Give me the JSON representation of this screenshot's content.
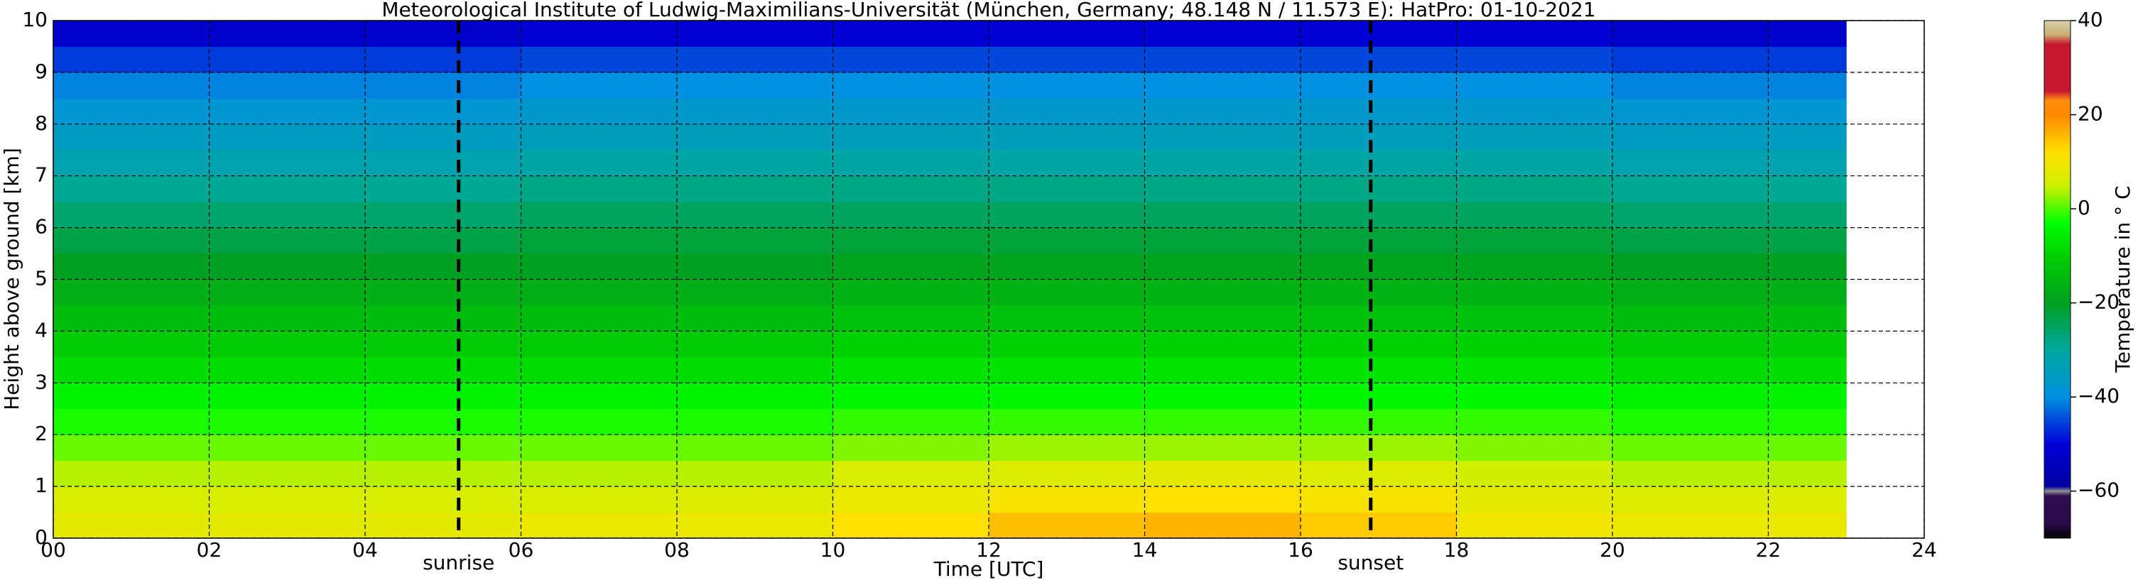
{
  "chart_data": {
    "type": "heatmap",
    "title": "Meteorological Institute of Ludwig-Maximilians-Universität (München, Germany; 48.148 N / 11.573 E):    HatPro: 01-10-2021",
    "x_label": "Time [UTC]",
    "y_label": "Height above ground [km]",
    "colorbar_label": "Temperature in $^\\circ$C",
    "colorbar_label_printed": "Temperature in ° C",
    "xlim": [
      0,
      24
    ],
    "ylim": [
      0,
      10
    ],
    "grid": true,
    "xticks": [
      {
        "value": 0,
        "label": "00"
      },
      {
        "value": 2,
        "label": "02"
      },
      {
        "value": 4,
        "label": "04"
      },
      {
        "value": 6,
        "label": "06"
      },
      {
        "value": 8,
        "label": "08"
      },
      {
        "value": 10,
        "label": "10"
      },
      {
        "value": 12,
        "label": "12"
      },
      {
        "value": 14,
        "label": "14"
      },
      {
        "value": 16,
        "label": "16"
      },
      {
        "value": 18,
        "label": "18"
      },
      {
        "value": 20,
        "label": "20"
      },
      {
        "value": 22,
        "label": "22"
      },
      {
        "value": 24,
        "label": "24"
      }
    ],
    "yticks": [
      0,
      1,
      2,
      3,
      4,
      5,
      6,
      7,
      8,
      9,
      10
    ],
    "clim": [
      -70,
      40
    ],
    "cticks": [
      40,
      20,
      0,
      {
        "value": -20,
        "label": "−20"
      },
      {
        "value": -40,
        "label": "−40"
      },
      {
        "value": -60,
        "label": "−60"
      }
    ],
    "colorscale": [
      [
        -70,
        "#000000"
      ],
      [
        -67,
        "#2a0a48"
      ],
      [
        -61,
        "#2e0e50"
      ],
      [
        -60,
        "#909090"
      ],
      [
        -59,
        "#0000a0"
      ],
      [
        -50,
        "#0000d8"
      ],
      [
        -40,
        "#0090e0"
      ],
      [
        -30,
        "#00a8a0"
      ],
      [
        -20,
        "#00a020"
      ],
      [
        -10,
        "#00d000"
      ],
      [
        -3,
        "#00ff00"
      ],
      [
        5,
        "#d0f000"
      ],
      [
        12,
        "#ffe000"
      ],
      [
        20,
        "#ff8800"
      ],
      [
        23,
        "#ff9010"
      ],
      [
        25,
        "#c81830"
      ],
      [
        35,
        "#c81830"
      ],
      [
        37,
        "#c8b070"
      ],
      [
        40,
        "#d8d0b0"
      ]
    ],
    "annotations": [
      {
        "x": 5.2,
        "label": "sunrise"
      },
      {
        "x": 16.9,
        "label": "sunset"
      }
    ],
    "x_edges": [
      0,
      2,
      4,
      6,
      8,
      10,
      12,
      14,
      16,
      18,
      20,
      22,
      23
    ],
    "y_edges": [
      0,
      0.5,
      1,
      1.5,
      2,
      2.5,
      3,
      3.5,
      4,
      4.5,
      5,
      5.5,
      6,
      6.5,
      7,
      7.5,
      8,
      8.5,
      9,
      9.5,
      10
    ],
    "values": [
      [
        8,
        8,
        8,
        9,
        9,
        12,
        15,
        16,
        14,
        10,
        9,
        9
      ],
      [
        6,
        6,
        6,
        6,
        7,
        9,
        11,
        12,
        11,
        8,
        7,
        7
      ],
      [
        4,
        4,
        4,
        4,
        4,
        6,
        7,
        8,
        7,
        5,
        4,
        4
      ],
      [
        1,
        1,
        1,
        1,
        1,
        2,
        3,
        3,
        3,
        2,
        1,
        1
      ],
      [
        -2,
        -2,
        -2,
        -2,
        -2,
        -1,
        -1,
        -1,
        -1,
        -1,
        -2,
        -2
      ],
      [
        -5,
        -5,
        -5,
        -5,
        -5,
        -4,
        -4,
        -4,
        -4,
        -4,
        -5,
        -5
      ],
      [
        -8,
        -8,
        -8,
        -8,
        -8,
        -7,
        -7,
        -7,
        -7,
        -7,
        -8,
        -8
      ],
      [
        -11,
        -11,
        -11,
        -11,
        -11,
        -10,
        -10,
        -10,
        -10,
        -10,
        -11,
        -11
      ],
      [
        -14,
        -14,
        -14,
        -14,
        -14,
        -13,
        -13,
        -13,
        -13,
        -13,
        -14,
        -14
      ],
      [
        -17,
        -17,
        -17,
        -17,
        -17,
        -16,
        -16,
        -16,
        -16,
        -16,
        -17,
        -17
      ],
      [
        -20,
        -20,
        -20,
        -20,
        -20,
        -19,
        -19,
        -19,
        -19,
        -19,
        -20,
        -20
      ],
      [
        -23,
        -23,
        -23,
        -22,
        -22,
        -22,
        -22,
        -22,
        -22,
        -22,
        -23,
        -23
      ],
      [
        -26,
        -26,
        -26,
        -25,
        -25,
        -25,
        -25,
        -25,
        -25,
        -25,
        -26,
        -26
      ],
      [
        -29,
        -29,
        -29,
        -28,
        -28,
        -28,
        -28,
        -28,
        -28,
        -28,
        -29,
        -29
      ],
      [
        -32,
        -32,
        -32,
        -31,
        -31,
        -31,
        -31,
        -31,
        -31,
        -31,
        -32,
        -32
      ],
      [
        -35,
        -35,
        -35,
        -34,
        -34,
        -34,
        -34,
        -34,
        -34,
        -34,
        -35,
        -35
      ],
      [
        -38,
        -38,
        -38,
        -37,
        -37,
        -37,
        -37,
        -37,
        -37,
        -37,
        -38,
        -38
      ],
      [
        -41,
        -41,
        -41,
        -40,
        -40,
        -40,
        -40,
        -40,
        -40,
        -40,
        -41,
        -41
      ],
      [
        -46,
        -46,
        -46,
        -45,
        -45,
        -45,
        -45,
        -45,
        -45,
        -45,
        -46,
        -46
      ],
      [
        -52,
        -52,
        -52,
        -51,
        -51,
        -51,
        -51,
        -51,
        -51,
        -51,
        -52,
        -52
      ]
    ]
  }
}
